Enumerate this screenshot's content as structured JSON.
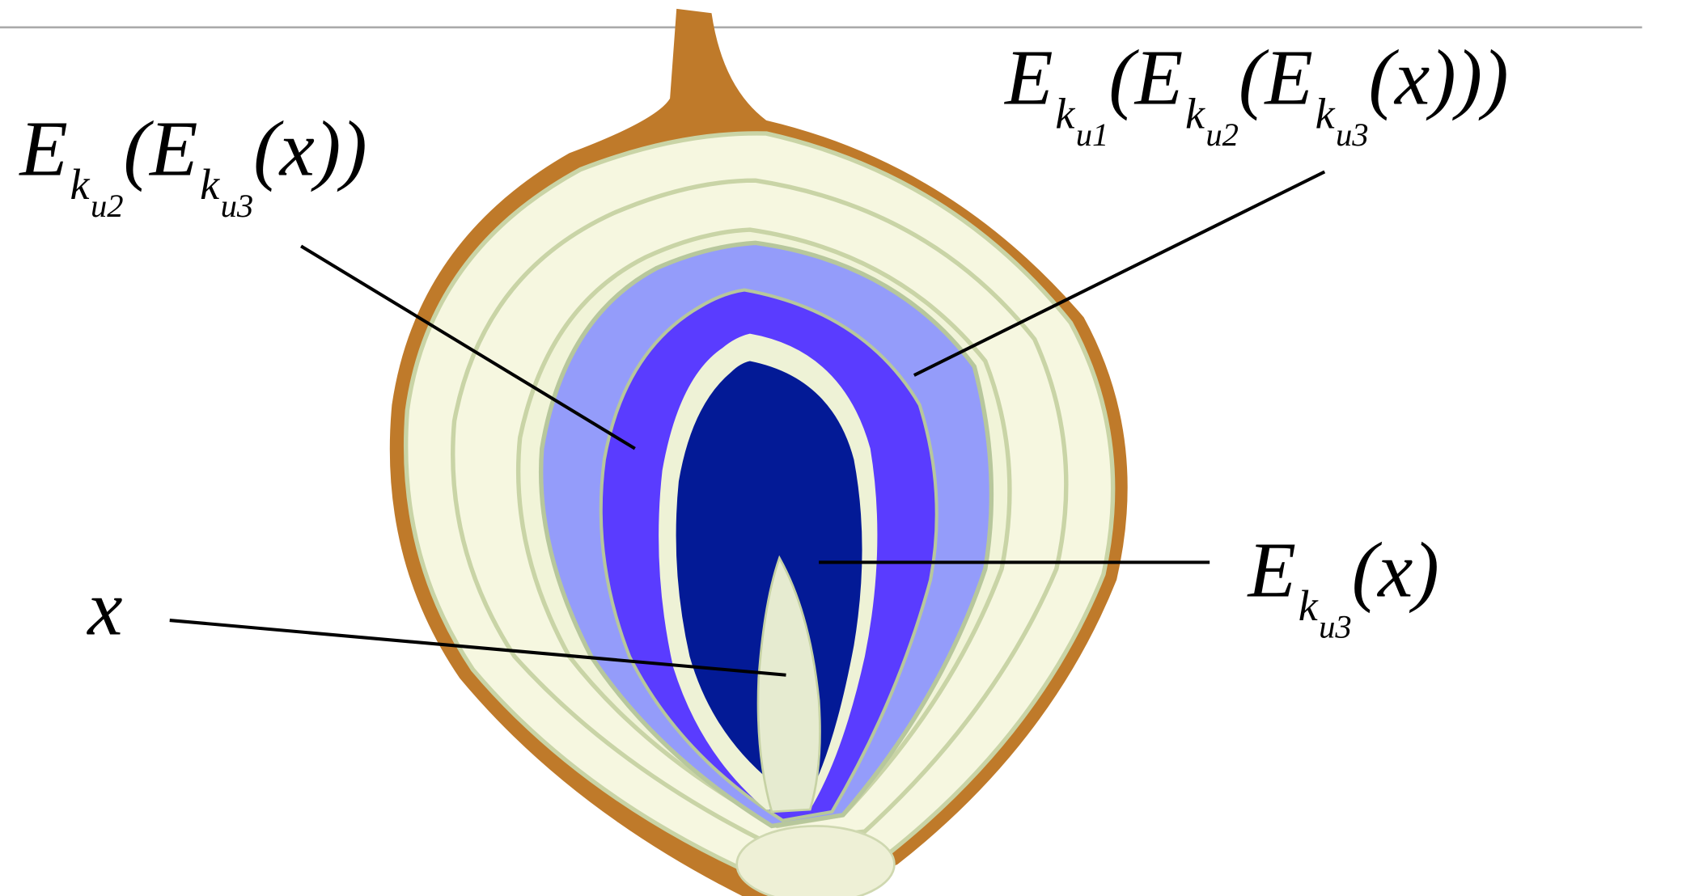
{
  "labels": [
    {
      "tokens": [
        {
          "text": "E",
          "level": 0
        },
        {
          "text": "k",
          "level": 1
        },
        {
          "text": "u1",
          "level": 2
        },
        {
          "text": "(",
          "level": 0
        },
        {
          "text": "E",
          "level": 0
        },
        {
          "text": "k",
          "level": 1
        },
        {
          "text": "u2",
          "level": 2
        },
        {
          "text": "(",
          "level": 0
        },
        {
          "text": "E",
          "level": 0
        },
        {
          "text": "k",
          "level": 1
        },
        {
          "text": "u3",
          "level": 2
        },
        {
          "text": "(x)))",
          "level": 0
        }
      ]
    },
    {
      "tokens": [
        {
          "text": "E",
          "level": 0
        },
        {
          "text": "k",
          "level": 1
        },
        {
          "text": "u2",
          "level": 2
        },
        {
          "text": "(",
          "level": 0
        },
        {
          "text": "E",
          "level": 0
        },
        {
          "text": "k",
          "level": 1
        },
        {
          "text": "u3",
          "level": 2
        },
        {
          "text": "(x))",
          "level": 0
        }
      ]
    },
    {
      "tokens": [
        {
          "text": "E",
          "level": 0
        },
        {
          "text": "k",
          "level": 1
        },
        {
          "text": "u3",
          "level": 2
        },
        {
          "text": "(x)",
          "level": 0
        }
      ]
    },
    {
      "tokens": [
        {
          "text": "x",
          "level": 0
        }
      ]
    }
  ]
}
